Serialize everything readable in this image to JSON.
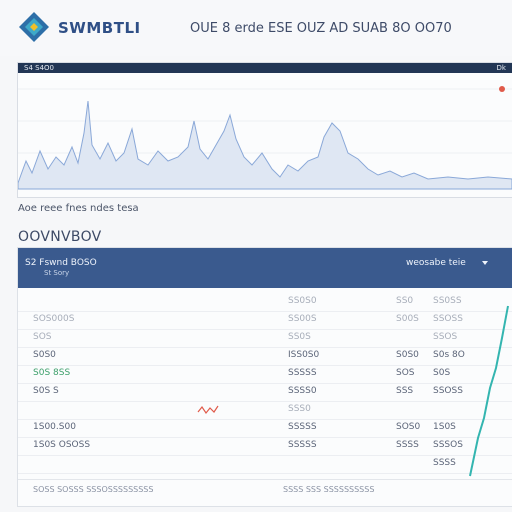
{
  "header": {
    "logo_icon": "diamond-logo-icon",
    "app_name": "SWMBTLI",
    "title": "OUE 8 erde ESE OUZ AD SUAB 8O OO70"
  },
  "chart": {
    "bar_left": "S4 S4O0",
    "bar_right": "Dk",
    "caption": "Aoe reee fnes ndes tesa",
    "accent_color": "#e05a4a",
    "line_color": "#8aa8d8"
  },
  "table": {
    "section_title": "OOVNVBOV",
    "header_title": "S2 Fswnd BOSO",
    "header_sub": "St Sory",
    "filter_label": "weosabe teie",
    "rows": [
      {
        "c0": "",
        "c1": "SS0S0",
        "c2": "SS0",
        "c3": "SS0SS",
        "faint": true
      },
      {
        "c0": "SOS000S",
        "c1": "SS00S",
        "c2": "S00S",
        "c3": "SSOSS",
        "faint": true
      },
      {
        "c0": "SOS",
        "c1": "SS0S",
        "c2": "",
        "c3": "SSOS",
        "faint": true
      },
      {
        "c0": "S0S0",
        "c1": "ISS0S0",
        "c2": "S0S0",
        "c3": "S0s 8O",
        "faint": false
      },
      {
        "c0": "S0S 8SS",
        "c1": "SSSSS",
        "c2": "SOS",
        "c3": "S0S",
        "faint": false
      },
      {
        "c0": "S0S S",
        "c1": "SSSS0",
        "c2": "SSS",
        "c3": "SSOSS",
        "faint": false
      },
      {
        "c0": "",
        "c1": "SSS0",
        "c2": "",
        "c3": "",
        "faint": true
      },
      {
        "c0": "1S00.S00",
        "c1": "SSSSS",
        "c2": "SOS0",
        "c3": "1S0S",
        "faint": false
      },
      {
        "c0": "1S0S OSOSS",
        "c1": "SSSSS",
        "c2": "SSSS",
        "c3": "SSSOS",
        "faint": false
      },
      {
        "c0": "",
        "c1": "",
        "c2": "",
        "c3": "SSSS",
        "faint": false
      }
    ],
    "footer_left": "SOSS SOSSS SSSOSSSSSSSSS",
    "footer_mid": "SSSS SSS SSSSSSSSSS"
  }
}
